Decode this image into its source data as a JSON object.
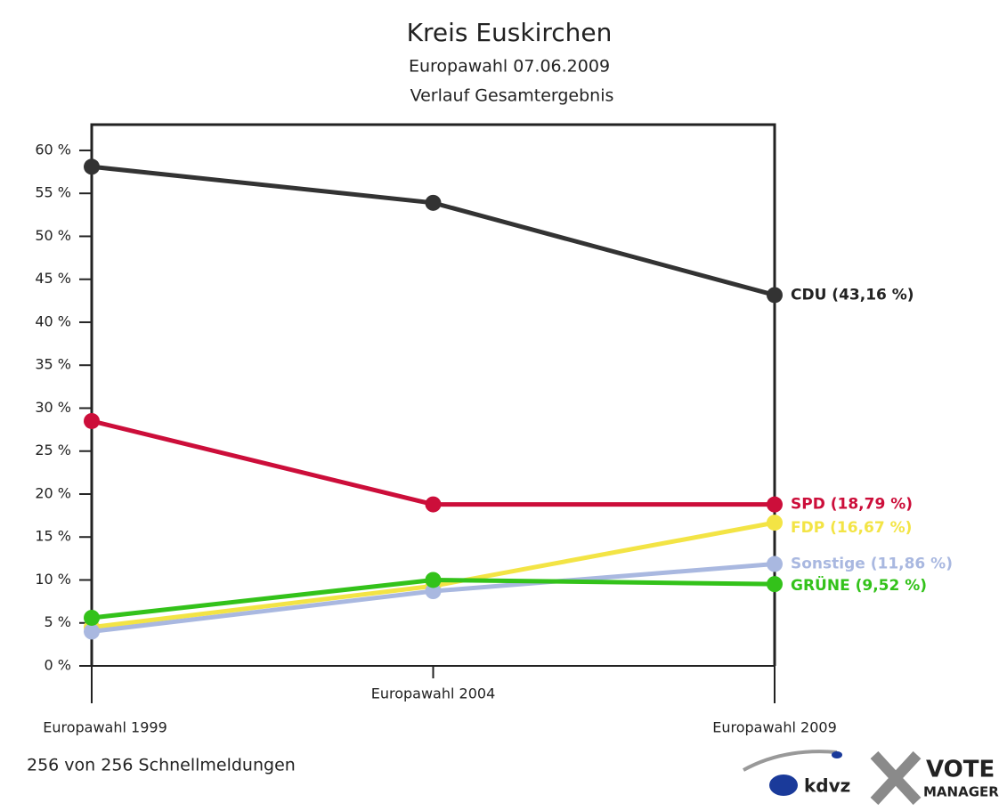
{
  "chart_data": {
    "type": "line",
    "title": "Kreis Euskirchen",
    "subtitle": "Europawahl 07.06.2009",
    "subtitle2": "Verlauf Gesamtergebnis",
    "categories": [
      "Europawahl 1999",
      "Europawahl 2004",
      "Europawahl 2009"
    ],
    "series": [
      {
        "name": "CDU",
        "color": "#333333",
        "values": [
          58.1,
          53.9,
          43.16
        ],
        "end_label": "CDU (43,16 %)"
      },
      {
        "name": "SPD",
        "color": "#cc0e3a",
        "values": [
          28.5,
          18.8,
          18.79
        ],
        "end_label": "SPD (18,79 %)"
      },
      {
        "name": "FDP",
        "color": "#f3e445",
        "values": [
          4.5,
          9.3,
          16.67
        ],
        "end_label": "FDP (16,67 %)"
      },
      {
        "name": "Sonstige",
        "color": "#a9b8e0",
        "values": [
          4.0,
          8.7,
          11.86
        ],
        "end_label": "Sonstige (11,86 %)"
      },
      {
        "name": "GRÜNE",
        "color": "#33c21a",
        "values": [
          5.6,
          10.0,
          9.52
        ],
        "end_label": "GRÜNE (9,52 %)"
      }
    ],
    "ylim": [
      0,
      63
    ],
    "yticks": [
      {
        "value": 0,
        "label": "0 %"
      },
      {
        "value": 5,
        "label": "5 %"
      },
      {
        "value": 10,
        "label": "10 %"
      },
      {
        "value": 15,
        "label": "15 %"
      },
      {
        "value": 20,
        "label": "20 %"
      },
      {
        "value": 25,
        "label": "25 %"
      },
      {
        "value": 30,
        "label": "30 %"
      },
      {
        "value": 35,
        "label": "35 %"
      },
      {
        "value": 40,
        "label": "40 %"
      },
      {
        "value": 45,
        "label": "45 %"
      },
      {
        "value": 50,
        "label": "50 %"
      },
      {
        "value": 55,
        "label": "55 %"
      },
      {
        "value": 60,
        "label": "60 %"
      }
    ]
  },
  "footer": {
    "note": "256 von 256 Schnellmeldungen",
    "logo1": "kdvz",
    "logo2": "VOTE",
    "logo3": "MANAGER"
  }
}
